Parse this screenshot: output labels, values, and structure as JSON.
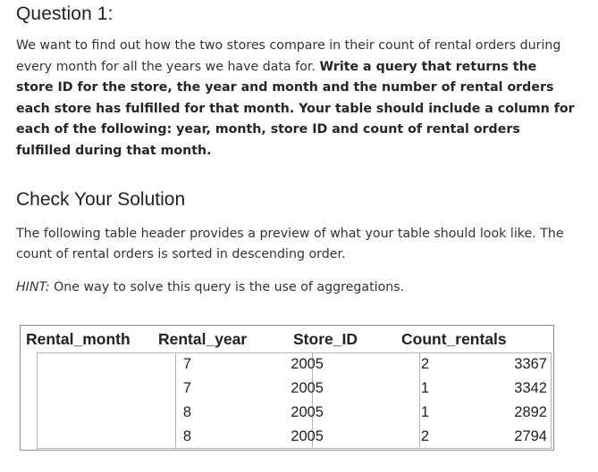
{
  "question": {
    "title": "Question 1:",
    "intro_plain": "We want to find out how the two stores compare in their count of rental orders during every month for all the years we have data for. ",
    "intro_bold": "Write a query that returns the store ID for the store, the year and month and the number of rental orders each store has fulfilled for that month. Your table should include a column for each of the following: year, month, store ID and count of rental orders fulfilled during that month."
  },
  "check": {
    "title": "Check Your Solution",
    "description": "The following table header provides a preview of what your table should look like. The count of rental orders is sorted in descending order.",
    "hint_label": "HINT:",
    "hint_text": " One way to solve this query is the use of aggregations."
  },
  "table": {
    "headers": [
      "Rental_month",
      "Rental_year",
      "Store_ID",
      "Count_rentals"
    ],
    "rows": [
      [
        "7",
        "2005",
        "2",
        "3367"
      ],
      [
        "7",
        "2005",
        "1",
        "3342"
      ],
      [
        "8",
        "2005",
        "1",
        "2892"
      ],
      [
        "8",
        "2005",
        "2",
        "2794"
      ]
    ]
  }
}
